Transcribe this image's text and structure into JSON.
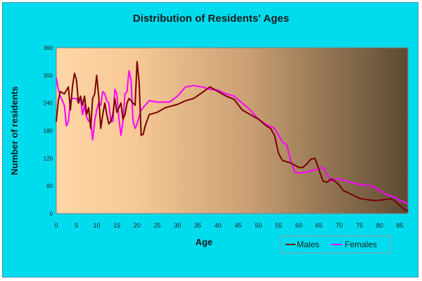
{
  "chart_data": {
    "type": "line",
    "title": "Distribution of Residents' Ages",
    "xlabel": "Age",
    "ylabel": "Number of residents",
    "xlim": [
      0,
      87
    ],
    "ylim": [
      0,
      360
    ],
    "x_ticks": [
      "0",
      "5",
      "10",
      "15",
      "20",
      "25",
      "30",
      "35",
      "40",
      "45",
      "50",
      "55",
      "60",
      "65",
      "70",
      "75",
      "80",
      "85"
    ],
    "y_ticks": [
      "0",
      "60",
      "120",
      "180",
      "240",
      "300",
      "360"
    ],
    "grid": false,
    "legend_position": "bottom-right",
    "colors": {
      "frame": "#00dcee",
      "plot_gradient_start": "#ffd6a6",
      "plot_gradient_end": "#5c4a33",
      "males": "#7a0000",
      "females": "#ff00ff"
    },
    "series": [
      {
        "name": "Males",
        "points": [
          [
            0,
            200
          ],
          [
            0.5,
            245
          ],
          [
            1,
            265
          ],
          [
            2,
            260
          ],
          [
            3,
            275
          ],
          [
            3.5,
            225
          ],
          [
            4,
            275
          ],
          [
            4.5,
            305
          ],
          [
            5,
            290
          ],
          [
            5.5,
            240
          ],
          [
            6,
            255
          ],
          [
            6.5,
            235
          ],
          [
            7,
            255
          ],
          [
            7.5,
            215
          ],
          [
            8,
            230
          ],
          [
            8.5,
            185
          ],
          [
            9,
            250
          ],
          [
            9.5,
            260
          ],
          [
            10,
            300
          ],
          [
            10.5,
            255
          ],
          [
            11,
            185
          ],
          [
            11.5,
            215
          ],
          [
            12,
            240
          ],
          [
            12.5,
            215
          ],
          [
            13,
            195
          ],
          [
            13.5,
            200
          ],
          [
            14,
            215
          ],
          [
            14.5,
            250
          ],
          [
            15,
            220
          ],
          [
            16,
            240
          ],
          [
            16.5,
            205
          ],
          [
            17,
            215
          ],
          [
            17.5,
            240
          ],
          [
            18,
            250
          ],
          [
            18.5,
            245
          ],
          [
            19,
            240
          ],
          [
            19.5,
            235
          ],
          [
            20,
            330
          ],
          [
            20.5,
            285
          ],
          [
            21,
            170
          ],
          [
            21.5,
            172
          ],
          [
            22,
            190
          ],
          [
            23,
            215
          ],
          [
            25,
            220
          ],
          [
            27,
            230
          ],
          [
            30,
            237
          ],
          [
            32,
            245
          ],
          [
            34,
            250
          ],
          [
            36,
            262
          ],
          [
            38,
            275
          ],
          [
            40,
            265
          ],
          [
            42,
            255
          ],
          [
            44,
            248
          ],
          [
            46,
            225
          ],
          [
            48,
            215
          ],
          [
            50,
            205
          ],
          [
            52,
            190
          ],
          [
            53,
            185
          ],
          [
            54,
            170
          ],
          [
            55,
            130
          ],
          [
            56,
            115
          ],
          [
            58,
            110
          ],
          [
            60,
            100
          ],
          [
            61,
            100
          ],
          [
            62,
            108
          ],
          [
            63,
            118
          ],
          [
            64,
            120
          ],
          [
            65,
            95
          ],
          [
            66,
            70
          ],
          [
            67,
            68
          ],
          [
            68,
            75
          ],
          [
            69,
            70
          ],
          [
            70,
            62
          ],
          [
            71,
            50
          ],
          [
            73,
            42
          ],
          [
            75,
            33
          ],
          [
            77,
            30
          ],
          [
            79,
            28
          ],
          [
            81,
            30
          ],
          [
            83,
            32
          ],
          [
            84,
            25
          ],
          [
            85,
            18
          ],
          [
            86,
            10
          ],
          [
            87,
            5
          ]
        ]
      },
      {
        "name": "Females",
        "points": [
          [
            0,
            295
          ],
          [
            0.5,
            270
          ],
          [
            1,
            255
          ],
          [
            2,
            235
          ],
          [
            2.5,
            190
          ],
          [
            3,
            200
          ],
          [
            3.5,
            245
          ],
          [
            4,
            250
          ],
          [
            5,
            250
          ],
          [
            5.5,
            240
          ],
          [
            6,
            250
          ],
          [
            6.5,
            215
          ],
          [
            7,
            235
          ],
          [
            7.5,
            210
          ],
          [
            8,
            200
          ],
          [
            8.5,
            200
          ],
          [
            9,
            160
          ],
          [
            9.5,
            200
          ],
          [
            10,
            225
          ],
          [
            10.5,
            240
          ],
          [
            11,
            235
          ],
          [
            11.5,
            265
          ],
          [
            12,
            260
          ],
          [
            12.5,
            245
          ],
          [
            13,
            240
          ],
          [
            13.5,
            200
          ],
          [
            14,
            200
          ],
          [
            14.5,
            270
          ],
          [
            15,
            260
          ],
          [
            15.5,
            205
          ],
          [
            16,
            170
          ],
          [
            16.5,
            200
          ],
          [
            17,
            260
          ],
          [
            17.5,
            265
          ],
          [
            18,
            310
          ],
          [
            18.5,
            290
          ],
          [
            19,
            200
          ],
          [
            19.5,
            185
          ],
          [
            20,
            195
          ],
          [
            21,
            225
          ],
          [
            22,
            235
          ],
          [
            23,
            245
          ],
          [
            25,
            242
          ],
          [
            28,
            242
          ],
          [
            30,
            255
          ],
          [
            32,
            275
          ],
          [
            34,
            278
          ],
          [
            36,
            275
          ],
          [
            38,
            270
          ],
          [
            40,
            268
          ],
          [
            42,
            260
          ],
          [
            44,
            255
          ],
          [
            46,
            240
          ],
          [
            48,
            225
          ],
          [
            50,
            205
          ],
          [
            52,
            193
          ],
          [
            54,
            185
          ],
          [
            55,
            170
          ],
          [
            56,
            155
          ],
          [
            57,
            150
          ],
          [
            58,
            115
          ],
          [
            59,
            90
          ],
          [
            60,
            88
          ],
          [
            62,
            90
          ],
          [
            64,
            95
          ],
          [
            66,
            100
          ],
          [
            67,
            85
          ],
          [
            68,
            70
          ],
          [
            69,
            75
          ],
          [
            70,
            75
          ],
          [
            72,
            70
          ],
          [
            74,
            65
          ],
          [
            76,
            62
          ],
          [
            78,
            60
          ],
          [
            80,
            50
          ],
          [
            81,
            45
          ],
          [
            82,
            40
          ],
          [
            84,
            35
          ],
          [
            85,
            28
          ],
          [
            86,
            25
          ],
          [
            87,
            22
          ]
        ]
      }
    ]
  }
}
